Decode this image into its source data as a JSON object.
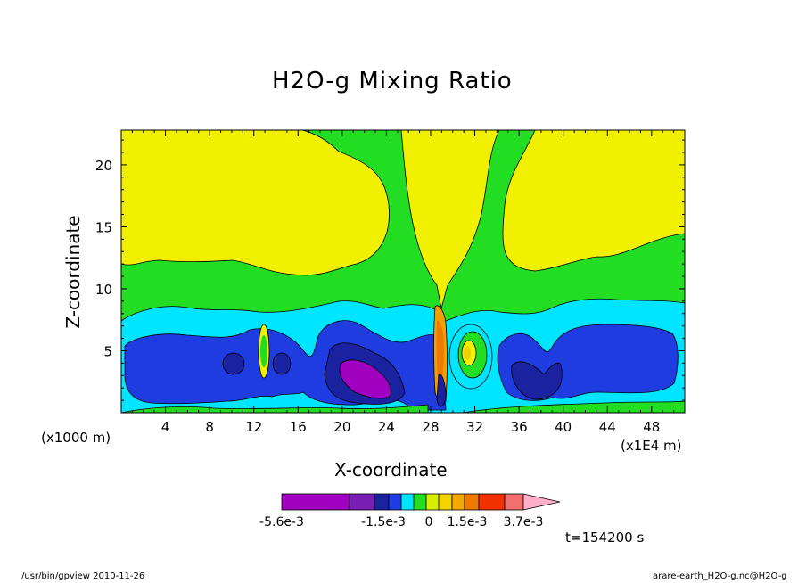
{
  "chart_data": {
    "type": "heatmap",
    "title": "H2O-g Mixing Ratio",
    "xlabel": "X-coordinate",
    "ylabel": "Z-coordinate",
    "x_unit_left": "(x1000 m)",
    "x_unit_right": "(x1E4 m)",
    "x_ticks": [
      "4",
      "8",
      "12",
      "16",
      "20",
      "24",
      "28",
      "32",
      "36",
      "40",
      "44",
      "48"
    ],
    "y_ticks": [
      "5",
      "10",
      "15",
      "20"
    ],
    "xlim": [
      0,
      51
    ],
    "ylim": [
      0,
      22.8
    ],
    "grid": false,
    "time_label": "t=154200 s",
    "colorbar": {
      "labels": [
        "-5.6e-3",
        "-1.5e-3",
        "0",
        "1.5e-3",
        "3.7e-3"
      ],
      "colors": [
        "#a000c0",
        "#7a1fb5",
        "#1a22a0",
        "#1e3ce0",
        "#00e5ff",
        "#22dd22",
        "#d8f000",
        "#f3d400",
        "#f5a800",
        "#f07a00",
        "#f03200",
        "#f07070",
        "#ffb0c8"
      ]
    },
    "field_colors": {
      "upper_layer": "#f0f000",
      "mid_layer": "#22dd22",
      "low_layer": "#00e5ff",
      "core": "#1e3ce0",
      "deep_core": "#1a22a0",
      "min": "#a000c0",
      "warm1": "#f0d000",
      "warm2": "#f0a000",
      "warm3": "#f07a00",
      "hot": "#f03200"
    }
  },
  "footer": {
    "left": "/usr/bin/gpview  2010-11-26",
    "right": "arare-earth_H2O-g.nc@H2O-g"
  }
}
